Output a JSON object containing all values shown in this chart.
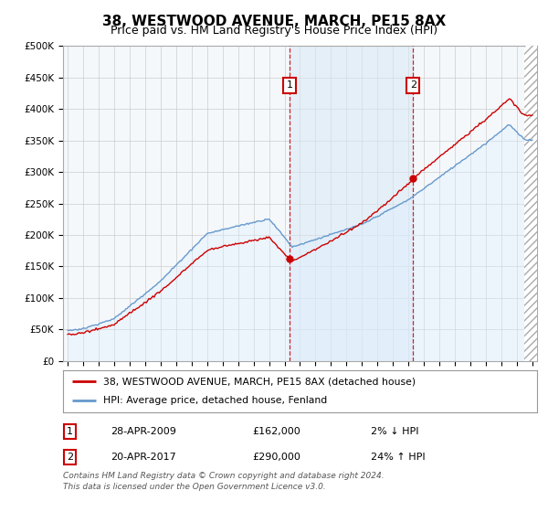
{
  "title": "38, WESTWOOD AVENUE, MARCH, PE15 8AX",
  "subtitle": "Price paid vs. HM Land Registry's House Price Index (HPI)",
  "ylim": [
    0,
    500000
  ],
  "yticks": [
    0,
    50000,
    100000,
    150000,
    200000,
    250000,
    300000,
    350000,
    400000,
    450000,
    500000
  ],
  "ytick_labels": [
    "£0",
    "£50K",
    "£100K",
    "£150K",
    "£200K",
    "£250K",
    "£300K",
    "£350K",
    "£400K",
    "£450K",
    "£500K"
  ],
  "sale1_date": 2009.32,
  "sale1_price": 162000,
  "sale2_date": 2017.3,
  "sale2_price": 290000,
  "property_line_color": "#cc0000",
  "hpi_line_color": "#6699cc",
  "hpi_fill_color": "#ddeeff",
  "vline_color": "#cc0000",
  "marker_color": "#cc0000",
  "legend1_text": "38, WESTWOOD AVENUE, MARCH, PE15 8AX (detached house)",
  "legend2_text": "HPI: Average price, detached house, Fenland",
  "table_row1": [
    "1",
    "28-APR-2009",
    "£162,000",
    "2% ↓ HPI"
  ],
  "table_row2": [
    "2",
    "20-APR-2017",
    "£290,000",
    "24% ↑ HPI"
  ],
  "footer": "Contains HM Land Registry data © Crown copyright and database right 2024.\nThis data is licensed under the Open Government Licence v3.0.",
  "bg_color": "#ffffff",
  "plot_bg_color": "#f5f8fb",
  "grid_color": "#cccccc",
  "title_fontsize": 11,
  "subtitle_fontsize": 9,
  "axis_fontsize": 7.5,
  "xlim_left": 1994.7,
  "xlim_right": 2025.3,
  "hatch_start": 2024.5
}
